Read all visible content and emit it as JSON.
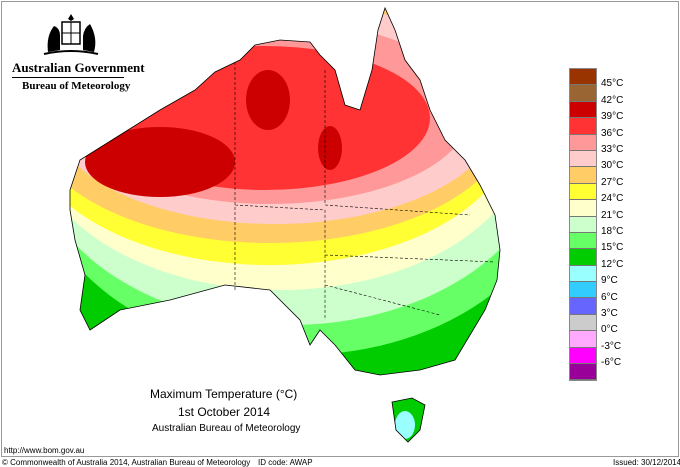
{
  "header": {
    "government": "Australian Government",
    "bureau": "Bureau of Meteorology"
  },
  "title": {
    "line1": "Maximum Temperature (°C)",
    "line2": "1st October 2014",
    "line3": "Australian Bureau of Meteorology"
  },
  "footer": {
    "url": "http://www.bom.gov.au",
    "copyright": "© Commonwealth of Australia 2014, Australian Bureau of Meteorology",
    "id_code": "ID code: AWAP",
    "issued": "Issued: 30/12/2014"
  },
  "legend": {
    "colors": [
      "#993300",
      "#996633",
      "#cc0000",
      "#ff3333",
      "#ff9999",
      "#ffcccc",
      "#ffcc66",
      "#ffff33",
      "#ffffcc",
      "#ccffcc",
      "#66ff66",
      "#00cc00",
      "#99ffff",
      "#33ccff",
      "#6666ff",
      "#cccccc",
      "#ffaaff",
      "#ff00ff",
      "#990099"
    ],
    "labels": [
      "45°C",
      "42°C",
      "39°C",
      "36°C",
      "33°C",
      "30°C",
      "27°C",
      "24°C",
      "21°C",
      "18°C",
      "15°C",
      "12°C",
      "9°C",
      "6°C",
      "3°C",
      "0°C",
      "-3°C",
      "-6°C"
    ]
  }
}
